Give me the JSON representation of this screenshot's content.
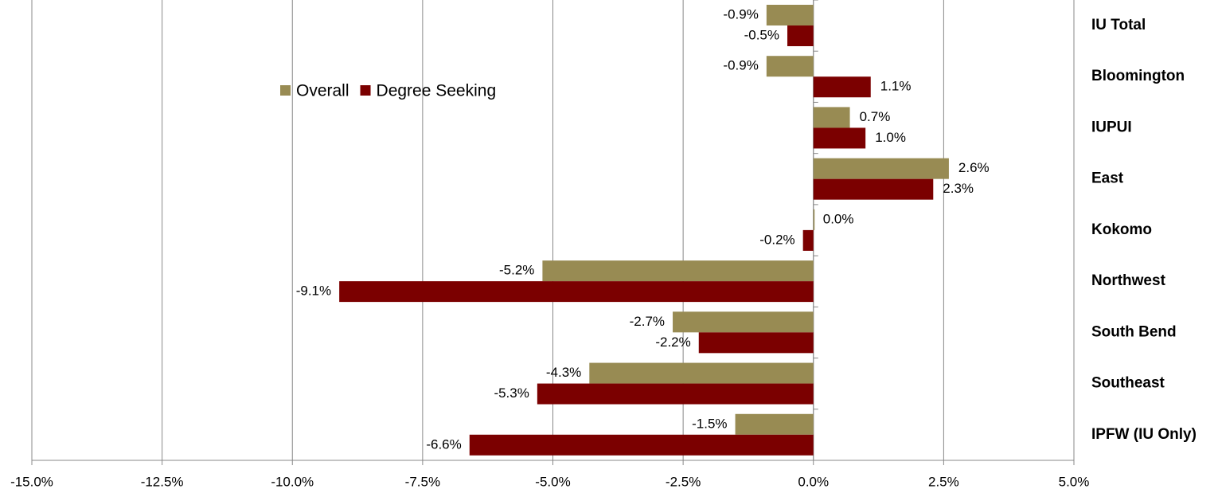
{
  "chart_data": {
    "type": "barh",
    "categories": [
      "IU Total",
      "Bloomington",
      "IUPUI",
      "East",
      "Kokomo",
      "Northwest",
      "South Bend",
      "Southeast",
      "IPFW (IU Only)"
    ],
    "series": [
      {
        "name": "Overall",
        "color": "#988b53",
        "values": [
          -0.9,
          -0.9,
          0.7,
          2.6,
          0.0,
          -5.2,
          -2.7,
          -4.3,
          -1.5
        ],
        "value_labels": [
          "-0.9%",
          "-0.9%",
          "0.7%",
          "2.6%",
          "0.0%",
          "-5.2%",
          "-2.7%",
          "-4.3%",
          "-1.5%"
        ]
      },
      {
        "name": "Degree Seeking",
        "color": "#7b0000",
        "values": [
          -0.5,
          1.1,
          1.0,
          2.3,
          -0.2,
          -9.1,
          -2.2,
          -5.3,
          -6.6
        ],
        "value_labels": [
          "-0.5%",
          "1.1%",
          "1.0%",
          "2.3%",
          "-0.2%",
          "-9.1%",
          "-2.2%",
          "-5.3%",
          "-6.6%"
        ]
      }
    ],
    "xlim": [
      -15,
      5
    ],
    "xticks": [
      {
        "value": -15,
        "label": "-15.0%"
      },
      {
        "value": -12.5,
        "label": "-12.5%"
      },
      {
        "value": -10,
        "label": "-10.0%"
      },
      {
        "value": -7.5,
        "label": "-7.5%"
      },
      {
        "value": -5,
        "label": "-5.0%"
      },
      {
        "value": -2.5,
        "label": "-2.5%"
      },
      {
        "value": 0,
        "label": "0.0%"
      },
      {
        "value": 2.5,
        "label": "2.5%"
      },
      {
        "value": 5,
        "label": "5.0%"
      }
    ],
    "grid": true
  }
}
